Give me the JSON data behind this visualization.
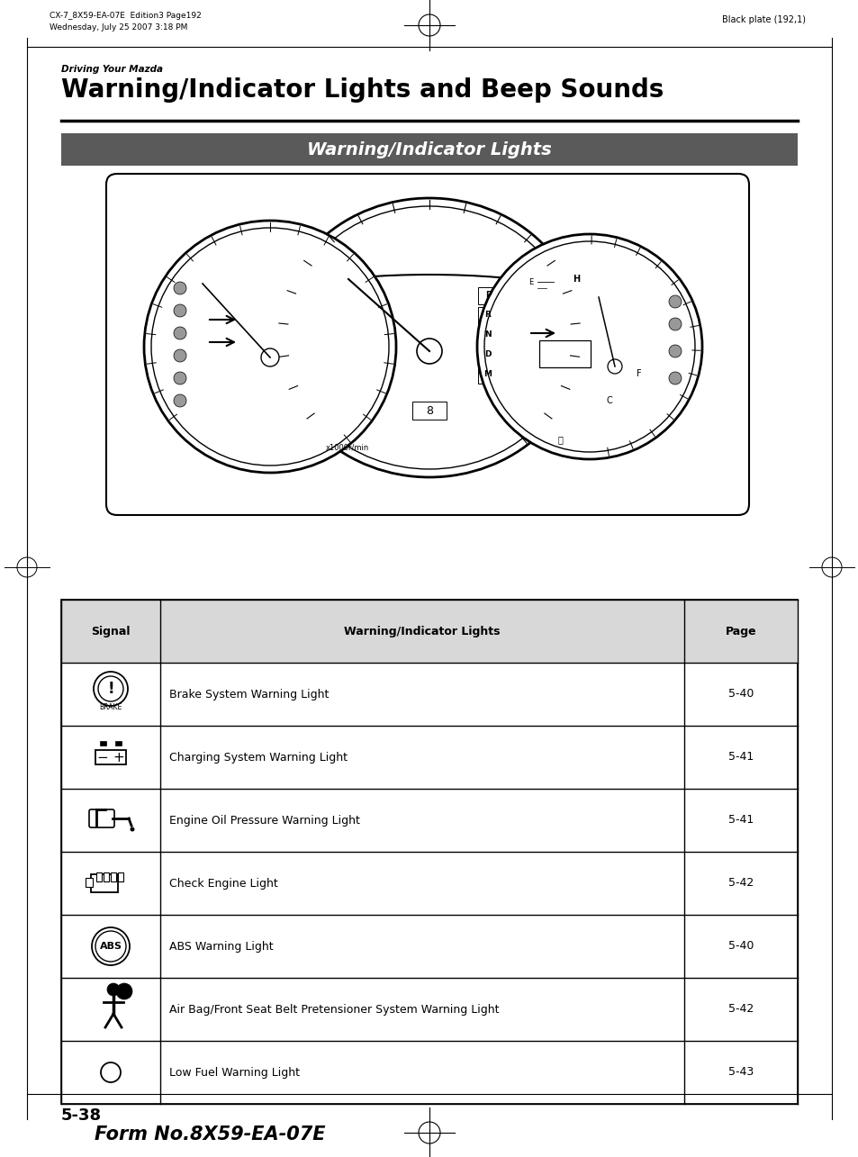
{
  "page_background": "#ffffff",
  "header_top_left_line1": "CX-7_8X59-EA-07E  Edition3 Page192",
  "header_top_left_line2": "Wednesday, July 25 2007 3:18 PM",
  "header_top_right": "Black plate (192,1)",
  "section_label": "Driving Your Mazda",
  "main_title": "Warning/Indicator Lights and Beep Sounds",
  "banner_text": "Warning/Indicator Lights",
  "banner_bg": "#5a5a5a",
  "banner_fg": "#ffffff",
  "table_header": [
    "Signal",
    "Warning/Indicator Lights",
    "Page"
  ],
  "table_rows": [
    {
      "page": "5-40",
      "description": "Brake System Warning Light"
    },
    {
      "page": "5-41",
      "description": "Charging System Warning Light"
    },
    {
      "page": "5-41",
      "description": "Engine Oil Pressure Warning Light"
    },
    {
      "page": "5-42",
      "description": "Check Engine Light"
    },
    {
      "page": "5-40",
      "description": "ABS Warning Light"
    },
    {
      "page": "5-42",
      "description": "Air Bag/Front Seat Belt Pretensioner System Warning Light"
    },
    {
      "page": "5-43",
      "description": "Low Fuel Warning Light"
    }
  ],
  "footer_page": "5-38",
  "footer_form": "Form No.8X59-EA-07E"
}
